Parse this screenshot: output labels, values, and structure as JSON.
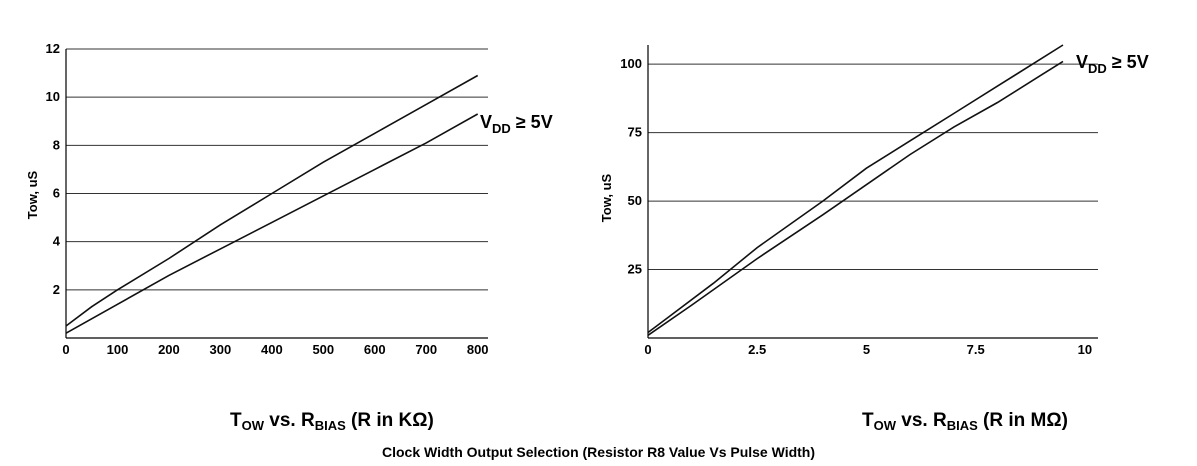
{
  "caption": "Clock Width Output Selection (Resistor R8 Value Vs Pulse Width)",
  "chart_data": [
    {
      "type": "line",
      "title_main": "T",
      "title_sub": "OW",
      "title_mid": " vs. R",
      "title_sub2": "BIAS",
      "title_end": " (R in KΩ)",
      "ylabel": "Tow, uS",
      "xlim": [
        0,
        820
      ],
      "ylim": [
        0,
        12
      ],
      "xticks": [
        "0",
        "100",
        "200",
        "300",
        "400",
        "500",
        "600",
        "700",
        "800"
      ],
      "xtick_values": [
        0,
        100,
        200,
        300,
        400,
        500,
        600,
        700,
        800
      ],
      "yticks": [
        "2",
        "4",
        "6",
        "8",
        "10",
        "12"
      ],
      "ytick_values": [
        2,
        4,
        6,
        8,
        10,
        12
      ],
      "grid": "horizontal",
      "annotation": {
        "V": "V",
        "sub": "DD",
        "rest": " ≥ 5V"
      },
      "series": [
        {
          "x": [
            0,
            50,
            100,
            200,
            300,
            400,
            500,
            600,
            700,
            800
          ],
          "y": [
            0.5,
            1.3,
            2.0,
            3.3,
            4.7,
            6.0,
            7.3,
            8.5,
            9.7,
            10.9
          ]
        },
        {
          "x": [
            0,
            100,
            200,
            300,
            400,
            500,
            600,
            700,
            800
          ],
          "y": [
            0.2,
            1.4,
            2.6,
            3.7,
            4.8,
            5.9,
            7.0,
            8.1,
            9.3
          ]
        }
      ]
    },
    {
      "type": "line",
      "title_main": "T",
      "title_sub": "OW",
      "title_mid": " vs. R",
      "title_sub2": "BIAS",
      "title_end": " (R in MΩ)",
      "ylabel": "Tow, uS",
      "xlim": [
        0,
        10.3
      ],
      "ylim": [
        0,
        107
      ],
      "xticks": [
        "0",
        "2.5",
        "5",
        "7.5",
        "10"
      ],
      "xtick_values": [
        0,
        2.5,
        5,
        7.5,
        10
      ],
      "yticks": [
        "25",
        "50",
        "75",
        "100"
      ],
      "ytick_values": [
        25,
        50,
        75,
        100
      ],
      "grid": "horizontal",
      "annotation": {
        "V": "V",
        "sub": "DD",
        "rest": " ≥ 5V"
      },
      "series": [
        {
          "x": [
            0,
            0.5,
            1.5,
            2.5,
            4,
            5,
            6,
            7,
            8,
            9,
            9.5
          ],
          "y": [
            2,
            8,
            20,
            33,
            50,
            62,
            72,
            82,
            92,
            102,
            107
          ]
        },
        {
          "x": [
            0,
            1,
            2.5,
            4,
            5,
            6,
            7,
            8,
            9,
            9.5
          ],
          "y": [
            1,
            12,
            29,
            45,
            56,
            67,
            77,
            86,
            96,
            101
          ]
        }
      ]
    }
  ]
}
